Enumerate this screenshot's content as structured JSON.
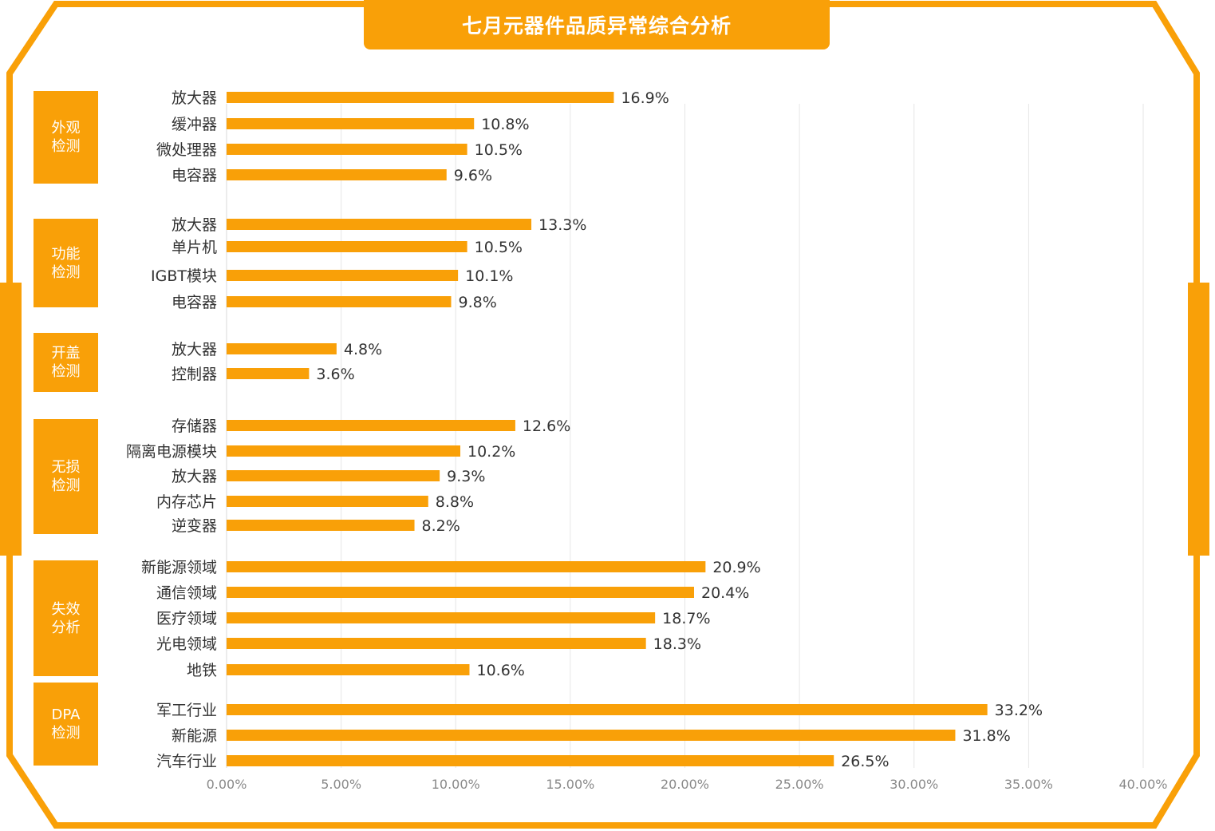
{
  "title": "七月元器件品质异常综合分析",
  "colors": {
    "accent": "#f9a008",
    "bar": "#f9a008",
    "grid": "#e6e6e6",
    "label": "#333333",
    "tick": "#8a8a8a"
  },
  "chart_data": {
    "type": "bar",
    "orientation": "horizontal",
    "title": "七月元器件品质异常综合分析",
    "xlim": [
      0,
      40
    ],
    "x_ticks": [
      "0.00%",
      "5.00%",
      "10.00%",
      "15.00%",
      "20.00%",
      "25.00%",
      "30.00%",
      "35.00%",
      "40.00%"
    ],
    "grid": true,
    "groups": [
      {
        "label": [
          "外观",
          "检测"
        ],
        "items": [
          {
            "category": "放大器",
            "value": 16.9,
            "label": "16.9%"
          },
          {
            "category": "缓冲器",
            "value": 10.8,
            "label": "10.8%"
          },
          {
            "category": "微处理器",
            "value": 10.5,
            "label": "10.5%"
          },
          {
            "category": "电容器",
            "value": 9.6,
            "label": "9.6%"
          }
        ]
      },
      {
        "label": [
          "功能",
          "检测"
        ],
        "items": [
          {
            "category": "放大器",
            "value": 13.3,
            "label": "13.3%"
          },
          {
            "category": "单片机",
            "value": 10.5,
            "label": "10.5%"
          },
          {
            "category": "IGBT模块",
            "value": 10.1,
            "label": "10.1%"
          },
          {
            "category": "电容器",
            "value": 9.8,
            "label": "9.8%"
          }
        ]
      },
      {
        "label": [
          "开盖",
          "检测"
        ],
        "items": [
          {
            "category": "放大器",
            "value": 4.8,
            "label": "4.8%"
          },
          {
            "category": "控制器",
            "value": 3.6,
            "label": "3.6%"
          }
        ]
      },
      {
        "label": [
          "无损",
          "检测"
        ],
        "items": [
          {
            "category": "存储器",
            "value": 12.6,
            "label": "12.6%"
          },
          {
            "category": "隔离电源模块",
            "value": 10.2,
            "label": "10.2%"
          },
          {
            "category": "放大器",
            "value": 9.3,
            "label": "9.3%"
          },
          {
            "category": "内存芯片",
            "value": 8.8,
            "label": "8.8%"
          },
          {
            "category": "逆变器",
            "value": 8.2,
            "label": "8.2%"
          }
        ]
      },
      {
        "label": [
          "失效",
          "分析"
        ],
        "items": [
          {
            "category": "新能源领域",
            "value": 20.9,
            "label": "20.9%"
          },
          {
            "category": "通信领域",
            "value": 20.4,
            "label": "20.4%"
          },
          {
            "category": "医疗领域",
            "value": 18.7,
            "label": "18.7%"
          },
          {
            "category": "光电领域",
            "value": 18.3,
            "label": "18.3%"
          },
          {
            "category": "地铁",
            "value": 10.6,
            "label": "10.6%"
          }
        ]
      },
      {
        "label": [
          "DPA",
          "检测"
        ],
        "items": [
          {
            "category": "军工行业",
            "value": 33.2,
            "label": "33.2%"
          },
          {
            "category": "新能源",
            "value": 31.8,
            "label": "31.8%"
          },
          {
            "category": "汽车行业",
            "value": 26.5,
            "label": "26.5%"
          }
        ]
      }
    ]
  }
}
